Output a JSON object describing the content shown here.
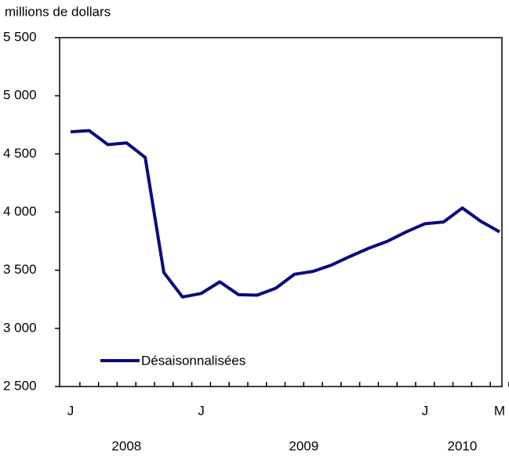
{
  "chart_data": {
    "type": "line",
    "y_label": "millions de dollars",
    "categories": [
      "J",
      null,
      null,
      null,
      null,
      null,
      null,
      "J",
      null,
      null,
      null,
      null,
      null,
      null,
      null,
      null,
      null,
      null,
      null,
      "J",
      null,
      null,
      null,
      "M"
    ],
    "year_labels": [
      "2008",
      "2009",
      "2010"
    ],
    "series": [
      {
        "name": "Désaisonnalisées",
        "color": "#0a0a80",
        "values": [
          4690,
          4700,
          4580,
          4595,
          4470,
          3480,
          3270,
          3300,
          3400,
          3290,
          3285,
          3345,
          3465,
          3490,
          3545,
          3620,
          3690,
          3750,
          3830,
          3900,
          3915,
          4035,
          3920,
          3830
        ]
      }
    ],
    "ylim": [
      2500,
      5500
    ],
    "yticks": [
      {
        "value": 2500,
        "label": "2 500"
      },
      {
        "value": 3000,
        "label": "3 000"
      },
      {
        "value": 3500,
        "label": "3 500"
      },
      {
        "value": 4000,
        "label": "4 000"
      },
      {
        "value": 4500,
        "label": "4 500"
      },
      {
        "value": 5000,
        "label": "5 000"
      },
      {
        "value": 5500,
        "label": "5 500"
      }
    ]
  }
}
